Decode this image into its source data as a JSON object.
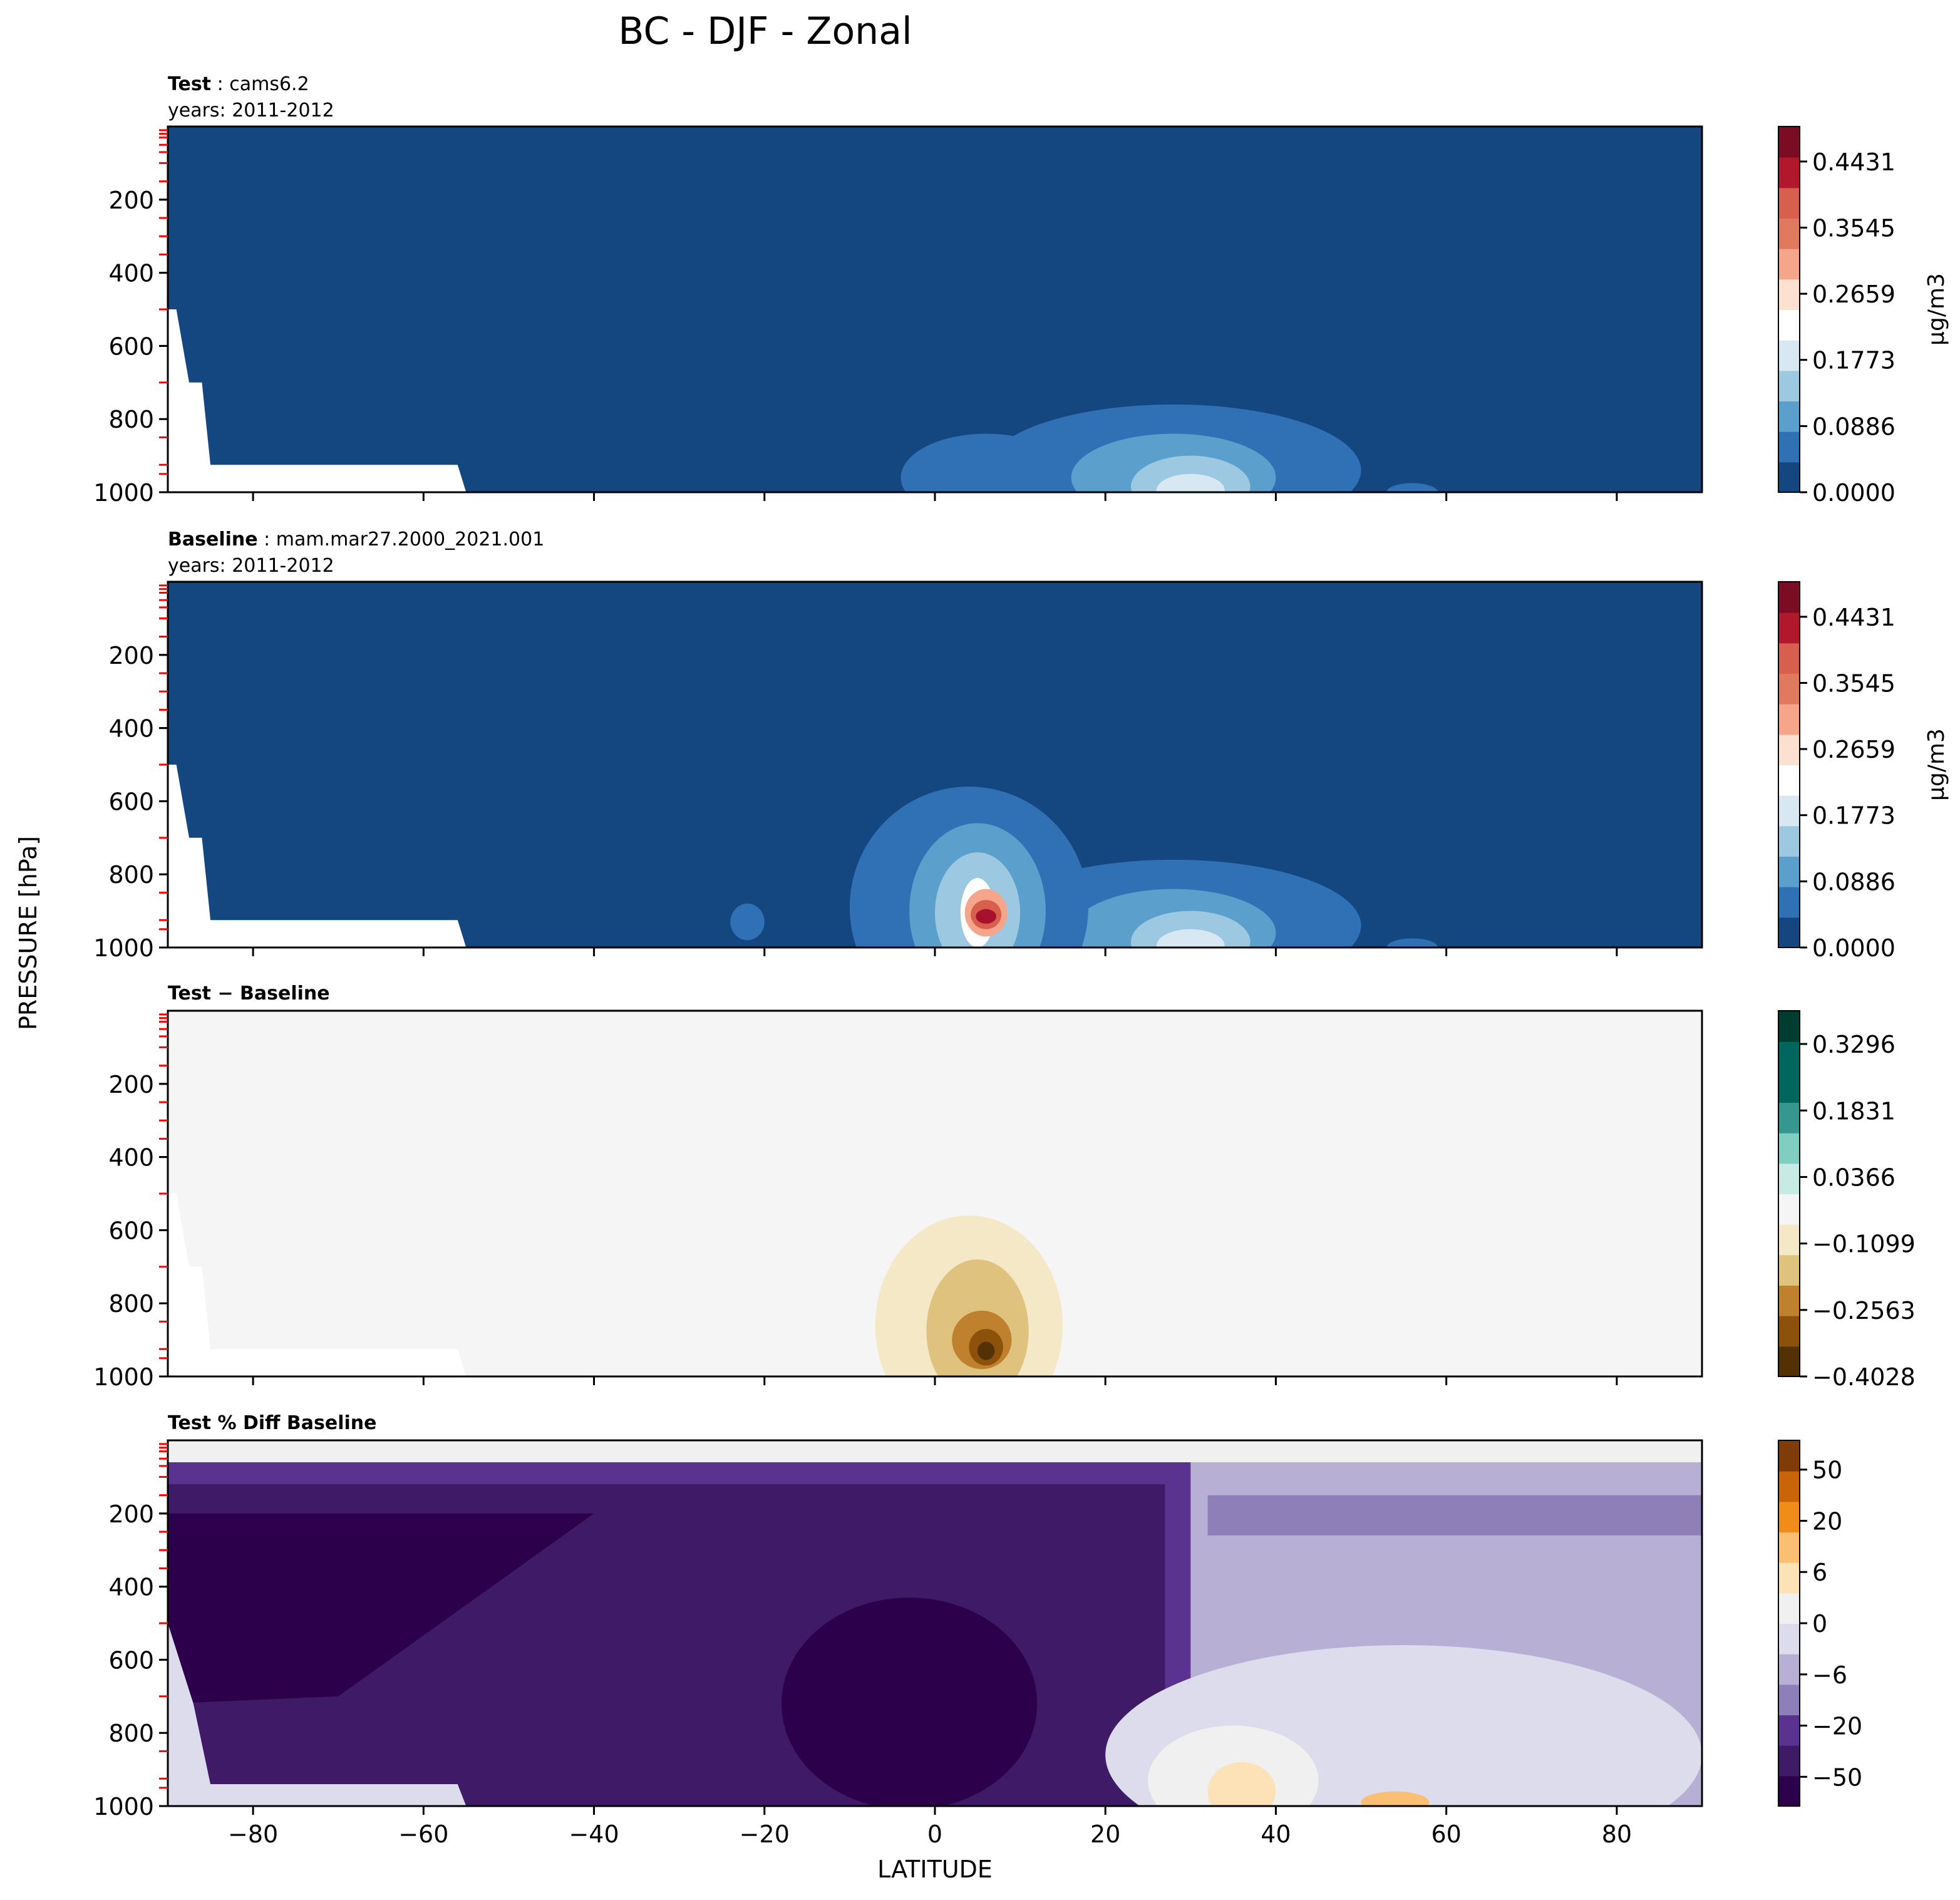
{
  "figure": {
    "title": "BC - DJF - Zonal",
    "ylabel": "PRESSURE [hPa]",
    "xlabel": "LATITUDE",
    "colors": {
      "level_tick": "#ff0000",
      "axis": "#000000"
    }
  },
  "chart_data": [
    {
      "type": "heatmap",
      "panel_title": {
        "bold": "Test",
        "normal": "cams6.2"
      },
      "years_label": "years: 2011-2012",
      "x_ticks": [
        -80,
        -60,
        -40,
        -20,
        0,
        20,
        40,
        60,
        80
      ],
      "x_tick_labels": [
        "",
        "",
        "",
        "",
        "",
        "",
        "",
        "",
        ""
      ],
      "y_ticks": [
        200,
        400,
        600,
        800,
        1000
      ],
      "xlim": [
        -90,
        90
      ],
      "ylim": [
        1000,
        0
      ],
      "colorbar": {
        "label": "μg/m3",
        "tick_labels": [
          "0.4431",
          "0.3545",
          "0.2659",
          "0.1773",
          "0.0886",
          "0.0000"
        ],
        "tick_values": [
          0.4431,
          0.3545,
          0.2659,
          0.1773,
          0.0886,
          0.0
        ],
        "range": [
          0,
          0.49
        ],
        "colormap": "RdBu_r"
      },
      "colors": {
        "background": "#14477f",
        "level1": "#2f71b4",
        "level2": "#5b9fcd",
        "level3": "#9dc8e1",
        "level4": "#d8e8f2",
        "level5": "#ffffff",
        "missing": "#ffffff"
      }
    },
    {
      "type": "heatmap",
      "panel_title": {
        "bold": "Baseline",
        "normal": "mam.mar27.2000_2021.001"
      },
      "years_label": "years: 2011-2012",
      "x_ticks": [
        -80,
        -60,
        -40,
        -20,
        0,
        20,
        40,
        60,
        80
      ],
      "x_tick_labels": [
        "",
        "",
        "",
        "",
        "",
        "",
        "",
        "",
        ""
      ],
      "y_ticks": [
        200,
        400,
        600,
        800,
        1000
      ],
      "xlim": [
        -90,
        90
      ],
      "ylim": [
        1000,
        0
      ],
      "colorbar": {
        "label": "μg/m3",
        "tick_labels": [
          "0.4431",
          "0.3545",
          "0.2659",
          "0.1773",
          "0.0886",
          "0.0000"
        ],
        "tick_values": [
          0.4431,
          0.3545,
          0.2659,
          0.1773,
          0.0886,
          0.0
        ],
        "range": [
          0,
          0.49
        ],
        "colormap": "RdBu_r"
      },
      "colors": {
        "background": "#14477f",
        "level1": "#2f71b4",
        "level2": "#5b9fcd",
        "level3": "#9dc8e1",
        "level4": "#d8e8f2",
        "level5": "#ffffff",
        "level6": "#f4a58a",
        "level7": "#d6604d",
        "level8": "#a8112c",
        "missing": "#ffffff"
      }
    },
    {
      "type": "heatmap",
      "panel_title": {
        "bold": "Test − Baseline",
        "normal": ""
      },
      "years_label": "",
      "x_ticks": [
        -80,
        -60,
        -40,
        -20,
        0,
        20,
        40,
        60,
        80
      ],
      "x_tick_labels": [
        "",
        "",
        "",
        "",
        "",
        "",
        "",
        "",
        ""
      ],
      "y_ticks": [
        200,
        400,
        600,
        800,
        1000
      ],
      "xlim": [
        -90,
        90
      ],
      "ylim": [
        1000,
        0
      ],
      "colorbar": {
        "label": "",
        "tick_labels": [
          "0.3296",
          "0.1831",
          "0.0366",
          "−0.1099",
          "−0.2563",
          "−0.4028"
        ],
        "tick_values": [
          0.3296,
          0.1831,
          0.0366,
          -0.1099,
          -0.2563,
          -0.4028
        ],
        "range": [
          -0.4028,
          0.4028
        ],
        "colormap": "BrBG"
      },
      "colors": {
        "background": "#f4f5f4",
        "level1": "#f5e8c6",
        "level2": "#dfc27d",
        "level3": "#bf812d",
        "level4": "#8c510a",
        "level5": "#543005",
        "missing": "#ffffff"
      }
    },
    {
      "type": "heatmap",
      "panel_title": {
        "bold": "Test % Diff Baseline",
        "normal": ""
      },
      "years_label": "",
      "x_ticks": [
        -80,
        -60,
        -40,
        -20,
        0,
        20,
        40,
        60,
        80
      ],
      "x_tick_labels": [
        "−80",
        "−60",
        "−40",
        "−20",
        "0",
        "20",
        "40",
        "60",
        "80"
      ],
      "y_ticks": [
        200,
        400,
        600,
        800,
        1000
      ],
      "xlim": [
        -90,
        90
      ],
      "ylim": [
        1000,
        0
      ],
      "colorbar": {
        "label": "",
        "tick_labels": [
          "50",
          "20",
          "6",
          "0",
          "−6",
          "−20",
          "−50"
        ],
        "tick_values": [
          50,
          20,
          6,
          0,
          -6,
          -20,
          -50
        ],
        "range": [
          -100,
          100
        ],
        "colormap": "PuOr_r"
      },
      "colors": {
        "deep": "#2d004b",
        "dark": "#3f1a67",
        "mid": "#5a3290",
        "light1": "#8f7fb8",
        "light2": "#b7b0d4",
        "light3": "#dcdcec",
        "neutral": "#f0f0f0",
        "orange1": "#fde1b7",
        "orange2": "#fbbf74"
      }
    }
  ]
}
